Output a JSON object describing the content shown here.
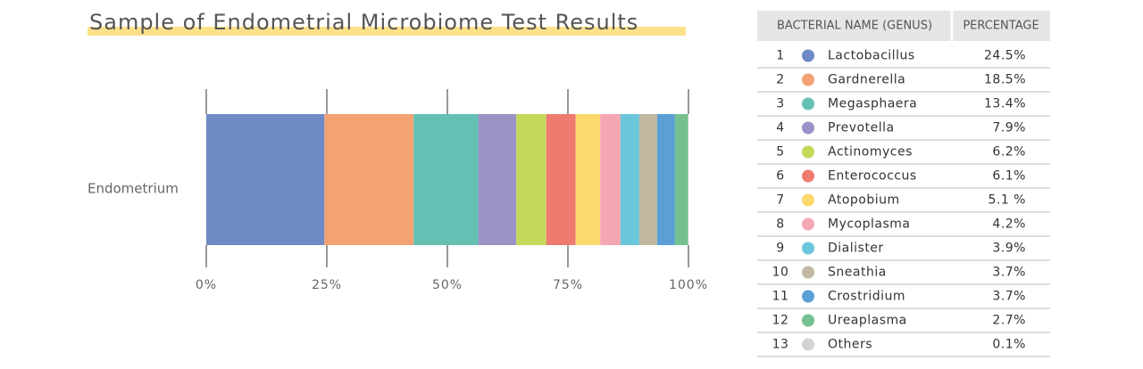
{
  "chart_data": {
    "type": "stacked_barh",
    "title": "Sample of Endometrial Microbiome Test Results",
    "categories": [
      "Endometrium"
    ],
    "xlim": [
      0,
      100
    ],
    "xticks": [
      {
        "value": 0,
        "label": "0%"
      },
      {
        "value": 25,
        "label": "25%"
      },
      {
        "value": 50,
        "label": "50%"
      },
      {
        "value": 75,
        "label": "75%"
      },
      {
        "value": 100,
        "label": "100%"
      }
    ],
    "series": [
      {
        "name": "Lactobacillus",
        "color": "#6f8ac4",
        "values": [
          24.5
        ],
        "value_labels": [
          "24.5%"
        ]
      },
      {
        "name": "Gardnerella",
        "color": "#f3a274",
        "values": [
          18.5
        ],
        "value_labels": [
          "18.5%"
        ]
      },
      {
        "name": "Megasphaera",
        "color": "#63c0b3",
        "values": [
          13.4
        ],
        "value_labels": [
          "13.4%"
        ]
      },
      {
        "name": "Prevotella",
        "color": "#9b93c5",
        "values": [
          7.9
        ],
        "value_labels": [
          "7.9%"
        ]
      },
      {
        "name": "Actinomyces",
        "color": "#c2d95a",
        "values": [
          6.2
        ],
        "value_labels": [
          "6.2%"
        ]
      },
      {
        "name": "Enterococcus",
        "color": "#ee7a70",
        "values": [
          6.1
        ],
        "value_labels": [
          "6.1%"
        ]
      },
      {
        "name": "Atopobium",
        "color": "#fdd96d",
        "values": [
          5.1
        ],
        "value_labels": [
          "5.1 %"
        ]
      },
      {
        "name": "Mycoplasma",
        "color": "#f4a7b3",
        "values": [
          4.2
        ],
        "value_labels": [
          "4.2%"
        ]
      },
      {
        "name": "Dialister",
        "color": "#6ac6da",
        "values": [
          3.9
        ],
        "value_labels": [
          "3.9%"
        ]
      },
      {
        "name": "Sneathia",
        "color": "#c0b8a0",
        "values": [
          3.7
        ],
        "value_labels": [
          "3.7%"
        ]
      },
      {
        "name": "Crostridium",
        "color": "#5b9fd7",
        "values": [
          3.7
        ],
        "value_labels": [
          "3.7%"
        ]
      },
      {
        "name": "Ureaplasma",
        "color": "#74c08f",
        "values": [
          2.7
        ],
        "value_labels": [
          "2.7%"
        ]
      },
      {
        "name": "Others",
        "color": "#d3d3d3",
        "values": [
          0.1
        ],
        "value_labels": [
          "0.1%"
        ]
      }
    ]
  },
  "table": {
    "headers": [
      "BACTERIAL NAME (GENUS)",
      "PERCENTAGE"
    ],
    "row_numbers": [
      1,
      2,
      3,
      4,
      5,
      6,
      7,
      8,
      9,
      10,
      11,
      12,
      13
    ]
  }
}
